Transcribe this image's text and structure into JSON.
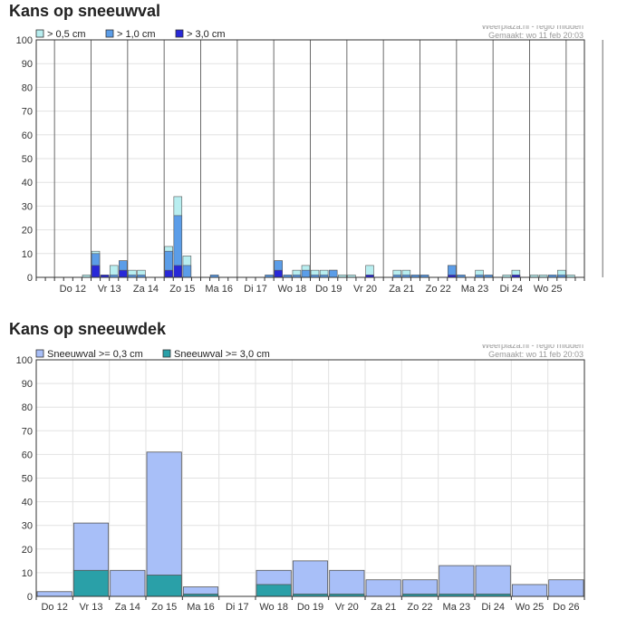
{
  "chart_data": [
    {
      "type": "bar",
      "title": "Kans op sneeuwval",
      "source_line1": "Weerplaza.nl - regio midden",
      "source_line2": "Gemaakt: wo 11 feb 20:03",
      "ylim": [
        0,
        100
      ],
      "yticks": [
        "0",
        "10",
        "20",
        "30",
        "40",
        "50",
        "60",
        "70",
        "80",
        "90",
        "100"
      ],
      "xticks": [
        "Do 12",
        "Vr 13",
        "Za 14",
        "Zo 15",
        "Ma 16",
        "Di 17",
        "Wo 18",
        "Do 19",
        "Vr 20",
        "Za 21",
        "Zo 22",
        "Ma 23",
        "Di 24",
        "Wo 25"
      ],
      "legend_position": "top-left",
      "grid": true,
      "series": [
        {
          "name": "> 0,5 cm",
          "color": "#b8eef0",
          "values": [
            0,
            0,
            0,
            0,
            0,
            1,
            11,
            1,
            5,
            7,
            3,
            3,
            0,
            0,
            13,
            34,
            9,
            0,
            0,
            1,
            0,
            0,
            0,
            0,
            0,
            1,
            7,
            1,
            3,
            5,
            3,
            3,
            3,
            1,
            1,
            0,
            5,
            0,
            0,
            3,
            3,
            1,
            1,
            0,
            0,
            5,
            1,
            0,
            3,
            1,
            0,
            1,
            3,
            0,
            1,
            1,
            1,
            3,
            1
          ]
        },
        {
          "name": "> 1,0 cm",
          "color": "#5b9de8",
          "values": [
            0,
            0,
            0,
            0,
            0,
            0,
            10,
            1,
            1,
            7,
            1,
            1,
            0,
            0,
            11,
            26,
            5,
            0,
            0,
            1,
            0,
            0,
            0,
            0,
            0,
            1,
            7,
            1,
            1,
            3,
            1,
            1,
            3,
            0,
            0,
            0,
            1,
            0,
            0,
            1,
            1,
            1,
            1,
            0,
            0,
            5,
            1,
            0,
            1,
            1,
            0,
            0,
            1,
            0,
            0,
            0,
            1,
            1,
            0
          ]
        },
        {
          "name": "> 3,0 cm",
          "color": "#2828d8",
          "values": [
            0,
            0,
            0,
            0,
            0,
            0,
            5,
            1,
            0,
            3,
            0,
            0,
            0,
            0,
            3,
            5,
            0,
            0,
            0,
            0,
            0,
            0,
            0,
            0,
            0,
            0,
            3,
            0,
            0,
            0,
            0,
            0,
            0,
            0,
            0,
            0,
            1,
            0,
            0,
            0,
            0,
            0,
            0,
            0,
            0,
            1,
            0,
            0,
            0,
            0,
            0,
            0,
            1,
            0,
            0,
            0,
            0,
            0,
            0
          ]
        }
      ]
    },
    {
      "type": "bar",
      "title": "Kans op sneeuwdek",
      "source_line1": "Weerplaza.nl - regio midden",
      "source_line2": "Gemaakt: wo 11 feb 20:03",
      "ylim": [
        0,
        100
      ],
      "yticks": [
        "0",
        "10",
        "20",
        "30",
        "40",
        "50",
        "60",
        "70",
        "80",
        "90",
        "100"
      ],
      "categories": [
        "Do 12",
        "Vr 13",
        "Za 14",
        "Zo 15",
        "Ma 16",
        "Di 17",
        "Wo 18",
        "Do 19",
        "Vr 20",
        "Za 21",
        "Zo 22",
        "Ma 23",
        "Di 24",
        "Wo 25",
        "Do 26"
      ],
      "legend_position": "top-left",
      "grid": true,
      "series": [
        {
          "name": "Sneeuwval >= 0,3 cm",
          "color": "#a8bff8",
          "values": [
            2,
            31,
            11,
            61,
            4,
            0,
            11,
            15,
            11,
            7,
            7,
            13,
            13,
            5,
            7
          ]
        },
        {
          "name": "Sneeuwval >= 3,0 cm",
          "color": "#2aa0a8",
          "values": [
            0,
            11,
            0,
            9,
            1,
            0,
            5,
            1,
            1,
            0,
            1,
            1,
            1,
            0,
            0
          ]
        }
      ]
    }
  ]
}
